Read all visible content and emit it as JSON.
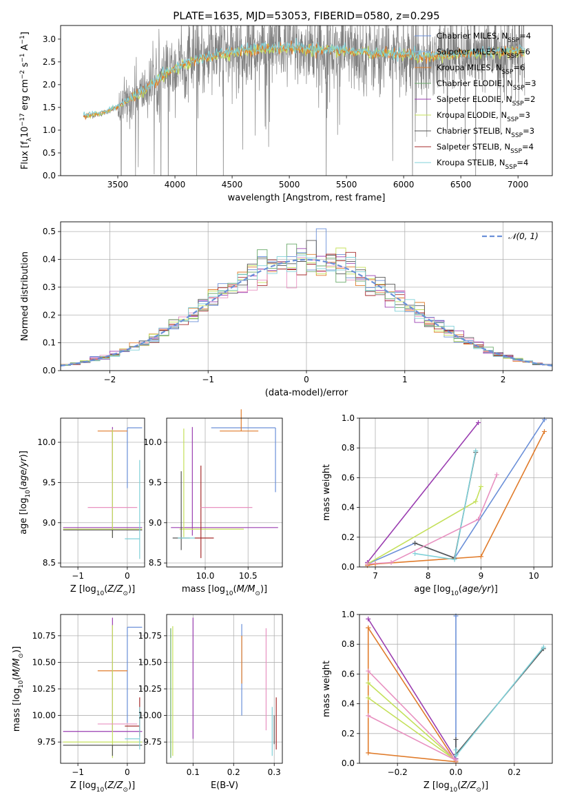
{
  "figure_title": "PLATE=1635, MJD=53053, FIBERID=0580, z=0.295",
  "colors": {
    "Chabrier MILES": "#6a8fd8",
    "Salpeter MILES": "#8ab4e8",
    "Kroupa MILES": "#e07b2a",
    "Chabrier ELODIE": "#6aaa6a",
    "Salpeter ELODIE": "#9a3db0",
    "Kroupa ELODIE": "#c4e05a",
    "Chabrier STELIB": "#555555",
    "Salpeter STELIB": "#a52a2a",
    "Kroupa STELIB": "#7fd0d8",
    "pink": "#e890c0",
    "gray_data": "#808080"
  },
  "chart_data": [
    {
      "id": "spectrum",
      "type": "line",
      "xlabel": "wavelength [Angstrom, rest frame]",
      "ylabel": "Flux [f_λ10^-17 erg cm^-2 s^-1 A^-1]",
      "xlim": [
        3000,
        7300
      ],
      "ylim": [
        0,
        3.3
      ],
      "xticks": [
        3500,
        4000,
        4500,
        5000,
        5500,
        6000,
        6500,
        7000
      ],
      "yticks": [
        0.0,
        0.5,
        1.0,
        1.5,
        2.0,
        2.5,
        3.0
      ],
      "legend_position": "top-right",
      "legend": [
        "Chabrier MILES, N_SSP=4",
        "Salpeter MILES, N_SSP=6",
        "Kroupa MILES, N_SSP=6",
        "Chabrier ELODIE, N_SSP=3",
        "Salpeter ELODIE, N_SSP=2",
        "Kroupa ELODIE, N_SSP=3",
        "Chabrier STELIB, N_SSP=3",
        "Salpeter STELIB, N_SSP=4",
        "Kroupa STELIB, N_SSP=4"
      ],
      "data_x_range": [
        3200,
        7060
      ],
      "continuum": {
        "x": [
          3200,
          3350,
          3500,
          3700,
          3900,
          4100,
          4300,
          4500,
          4800,
          5000,
          5300,
          5600,
          5900,
          6200,
          6500,
          6800,
          7050
        ],
        "y": [
          1.3,
          1.35,
          1.5,
          1.8,
          2.2,
          2.45,
          2.6,
          2.7,
          2.78,
          2.78,
          2.75,
          2.7,
          2.65,
          2.6,
          2.65,
          2.7,
          2.72
        ]
      }
    },
    {
      "id": "residuals",
      "type": "histogram",
      "xlabel": "(data-model)/error",
      "ylabel": "Normed distribution",
      "xlim": [
        -2.5,
        2.5
      ],
      "ylim": [
        0,
        0.535
      ],
      "xticks": [
        -2,
        -1,
        0,
        1,
        2
      ],
      "yticks": [
        0.0,
        0.1,
        0.2,
        0.3,
        0.4,
        0.5
      ],
      "grid": true,
      "legend": "𝒩(0, 1)",
      "legend_position": "top-right",
      "bin_width": 0.1,
      "peak_value": 0.51
    },
    {
      "id": "age_vs_Z",
      "type": "errorbar",
      "xlabel": "Z [log10(Z/Z⊙)]",
      "ylabel": "age  [log10(age/yr)]",
      "xlim": [
        -1.35,
        0.35
      ],
      "ylim": [
        8.45,
        10.3
      ],
      "xticks": [
        -1,
        0
      ],
      "yticks": [
        8.5,
        9.0,
        9.5,
        10.0
      ],
      "grid": true,
      "points": [
        {
          "model": "Chabrier MILES",
          "x": 0.0,
          "xerr": [
            0.0,
            0.3
          ],
          "y": 10.18,
          "yerr": [
            0.75,
            0.0
          ]
        },
        {
          "model": "Kroupa MILES",
          "x": -0.3,
          "xerr": [
            0.3,
            0.3
          ],
          "y": 10.14,
          "yerr": [
            0.5,
            0.0
          ]
        },
        {
          "model": "Salpeter ELODIE",
          "x": -0.3,
          "xerr": [
            1.0,
            0.6
          ],
          "y": 8.94,
          "yerr": [
            0.05,
            1.25
          ]
        },
        {
          "model": "Kroupa ELODIE",
          "x": -0.3,
          "xerr": [
            1.0,
            0.6
          ],
          "y": 8.92,
          "yerr": [
            0.1,
            1.24
          ]
        },
        {
          "model": "Chabrier STELIB",
          "x": -0.3,
          "xerr": [
            1.0,
            0.6
          ],
          "y": 8.91,
          "yerr": [
            0.1,
            0.0
          ]
        },
        {
          "model": "pink",
          "x": -0.3,
          "xerr": [
            0.5,
            0.5
          ],
          "y": 9.19,
          "yerr": [
            0.0,
            0.0
          ]
        },
        {
          "model": "Kroupa STELIB",
          "x": 0.25,
          "xerr": [
            0.3,
            0.0
          ],
          "y": 8.8,
          "yerr": [
            0.25,
            0.98
          ]
        }
      ]
    },
    {
      "id": "age_vs_mass",
      "type": "errorbar",
      "xlabel": "mass [log10(M/M⊙)]",
      "ylabel": "",
      "xlim": [
        9.55,
        10.9
      ],
      "ylim": [
        8.45,
        10.3
      ],
      "xticks": [
        10.0,
        10.5
      ],
      "yticks": [
        8.5,
        9.0,
        9.5,
        10.0
      ],
      "grid": true,
      "points": [
        {
          "model": "Chabrier MILES",
          "x": 10.82,
          "xerr": [
            0.75,
            0.0
          ],
          "y": 10.18,
          "yerr": [
            0.8,
            0.0
          ]
        },
        {
          "model": "Kroupa MILES",
          "x": 10.42,
          "xerr": [
            0.25,
            0.2
          ],
          "y": 10.14,
          "yerr": [
            0.0,
            0.27
          ]
        },
        {
          "model": "Salpeter ELODIE",
          "x": 9.85,
          "xerr": [
            0.25,
            1.0
          ],
          "y": 8.94,
          "yerr": [
            0.1,
            1.25
          ]
        },
        {
          "model": "Kroupa ELODIE",
          "x": 9.75,
          "xerr": [
            0.05,
            0.7
          ],
          "y": 8.92,
          "yerr": [
            0.1,
            1.25
          ]
        },
        {
          "model": "Chabrier STELIB",
          "x": 9.72,
          "xerr": [
            0.1,
            0.1
          ],
          "y": 8.81,
          "yerr": [
            0.15,
            0.83
          ]
        },
        {
          "model": "Salpeter STELIB",
          "x": 9.95,
          "xerr": [
            0.08,
            0.15
          ],
          "y": 8.81,
          "yerr": [
            0.25,
            0.9
          ]
        },
        {
          "model": "pink",
          "x": 10.25,
          "xerr": [
            0.3,
            0.3
          ],
          "y": 9.19,
          "yerr": [
            0.0,
            0.0
          ]
        },
        {
          "model": "Kroupa STELIB",
          "x": 9.78,
          "xerr": [
            0.1,
            0.1
          ],
          "y": 8.81,
          "yerr": [
            0.0,
            0.0
          ]
        }
      ]
    },
    {
      "id": "mass_weight_vs_age",
      "type": "line",
      "xlabel": "age  [log10(age/yr)]",
      "ylabel": "mass weight",
      "xlim": [
        6.7,
        10.35
      ],
      "ylim": [
        0,
        1.0
      ],
      "xticks": [
        7,
        8,
        9,
        10
      ],
      "yticks": [
        0.0,
        0.2,
        0.4,
        0.6,
        0.8,
        1.0
      ],
      "grid": true,
      "series": [
        {
          "name": "Chabrier MILES",
          "x": [
            6.85,
            7.75,
            8.5,
            10.2
          ],
          "y": [
            0.02,
            0.16,
            0.06,
            0.99
          ]
        },
        {
          "name": "Kroupa MILES",
          "x": [
            6.85,
            7.0,
            9.0,
            10.2
          ],
          "y": [
            0.01,
            0.02,
            0.07,
            0.91
          ]
        },
        {
          "name": "Salpeter ELODIE",
          "x": [
            6.85,
            8.95
          ],
          "y": [
            0.03,
            0.97
          ]
        },
        {
          "name": "Kroupa ELODIE",
          "x": [
            6.85,
            8.9,
            9.0
          ],
          "y": [
            0.02,
            0.44,
            0.54
          ]
        },
        {
          "name": "Chabrier STELIB",
          "x": [
            7.75,
            8.5,
            8.9
          ],
          "y": [
            0.16,
            0.06,
            0.77
          ]
        },
        {
          "name": "Kroupa STELIB",
          "x": [
            7.75,
            8.5,
            8.9
          ],
          "y": [
            0.09,
            0.05,
            0.78
          ]
        },
        {
          "name": "pink",
          "x": [
            6.85,
            7.3,
            8.95,
            9.3
          ],
          "y": [
            0.02,
            0.03,
            0.32,
            0.62
          ]
        }
      ]
    },
    {
      "id": "mass_vs_Z",
      "type": "errorbar",
      "xlabel": "Z [log10(Z/Z⊙)]",
      "ylabel": "mass [log10(M/M⊙)]",
      "xlim": [
        -1.35,
        0.35
      ],
      "ylim": [
        9.55,
        10.95
      ],
      "xticks": [
        -1,
        0
      ],
      "yticks": [
        9.75,
        10.0,
        10.25,
        10.5,
        10.75
      ],
      "grid": true,
      "points": [
        {
          "model": "Chabrier MILES",
          "x": 0.0,
          "xerr": [
            0.0,
            0.3
          ],
          "y": 10.83,
          "yerr": [
            0.9,
            0.0
          ]
        },
        {
          "model": "Kroupa MILES",
          "x": -0.3,
          "xerr": [
            0.3,
            0.3
          ],
          "y": 10.42,
          "yerr": [
            0.0,
            0.0
          ]
        },
        {
          "model": "Salpeter ELODIE",
          "x": -0.3,
          "xerr": [
            1.0,
            0.6
          ],
          "y": 9.85,
          "yerr": [
            0.0,
            1.07
          ]
        },
        {
          "model": "Kroupa ELODIE",
          "x": -0.3,
          "xerr": [
            1.0,
            0.6
          ],
          "y": 9.75,
          "yerr": [
            0.15,
            1.1
          ]
        },
        {
          "model": "Chabrier STELIB",
          "x": -0.3,
          "xerr": [
            1.0,
            0.6
          ],
          "y": 9.72,
          "yerr": [
            0.1,
            0.0
          ]
        },
        {
          "model": "Salpeter STELIB",
          "x": 0.25,
          "xerr": [
            0.3,
            0.0
          ],
          "y": 9.9,
          "yerr": [
            0.1,
            0.27
          ]
        },
        {
          "model": "pink",
          "x": -0.3,
          "xerr": [
            0.3,
            0.5
          ],
          "y": 9.92,
          "yerr": [
            0.0,
            0.0
          ]
        },
        {
          "model": "Kroupa STELIB",
          "x": 0.25,
          "xerr": [
            0.3,
            0.0
          ],
          "y": 9.78,
          "yerr": [
            0.1,
            0.3
          ]
        }
      ]
    },
    {
      "id": "mass_vs_EBV",
      "type": "errorbar",
      "xlabel": "E(B-V)",
      "ylabel": "",
      "xlim": [
        0.035,
        0.32
      ],
      "ylim": [
        9.55,
        10.95
      ],
      "xticks": [
        0.1,
        0.2,
        0.3
      ],
      "yticks": [
        9.75,
        10.0,
        10.25,
        10.5,
        10.75
      ],
      "grid": true,
      "points": [
        {
          "model": "Chabrier MILES",
          "x": 0.22,
          "yerr": [
            10.0,
            10.86
          ]
        },
        {
          "model": "Kroupa MILES",
          "x": 0.22,
          "yerr": [
            10.3,
            10.75
          ]
        },
        {
          "model": "Salpeter ELODIE",
          "x": 0.1,
          "yerr": [
            9.78,
            10.92
          ]
        },
        {
          "model": "Kroupa ELODIE",
          "x": 0.05,
          "yerr": [
            9.62,
            10.84
          ]
        },
        {
          "model": "Chabrier ELODIE",
          "x": 0.045,
          "yerr": [
            9.6,
            10.82
          ]
        },
        {
          "model": "Chabrier STELIB",
          "x": 0.3,
          "yerr": [
            9.73,
            10.0
          ]
        },
        {
          "model": "Salpeter STELIB",
          "x": 0.305,
          "yerr": [
            9.68,
            10.17
          ]
        },
        {
          "model": "pink",
          "x": 0.28,
          "yerr": [
            9.86,
            10.82
          ]
        },
        {
          "model": "Kroupa STELIB",
          "x": 0.295,
          "yerr": [
            9.62,
            10.08
          ]
        }
      ]
    },
    {
      "id": "mass_weight_vs_Z",
      "type": "line",
      "xlabel": "Z [log10(Z/Z⊙)]",
      "ylabel": "mass weight",
      "xlim": [
        -0.33,
        0.33
      ],
      "ylim": [
        0,
        1.0
      ],
      "xticks": [
        -0.2,
        0.0,
        0.2
      ],
      "yticks": [
        0.0,
        0.2,
        0.4,
        0.6,
        0.8,
        1.0
      ],
      "grid": true,
      "series": [
        {
          "name": "Chabrier MILES",
          "x": [
            0.0,
            0.0
          ],
          "y": [
            0.01,
            0.99
          ]
        },
        {
          "name": "Kroupa MILES",
          "x": [
            -0.3,
            0.0,
            -0.3,
            -0.3
          ],
          "y": [
            0.91,
            0.01,
            0.07,
            0.91
          ]
        },
        {
          "name": "Salpeter ELODIE",
          "x": [
            -0.3,
            0.0
          ],
          "y": [
            0.97,
            0.03
          ]
        },
        {
          "name": "Kroupa ELODIE",
          "x": [
            -0.3,
            0.0,
            -0.3
          ],
          "y": [
            0.54,
            0.02,
            0.44
          ]
        },
        {
          "name": "Chabrier STELIB",
          "x": [
            0.0,
            0.0,
            0.3
          ],
          "y": [
            0.16,
            0.06,
            0.77
          ]
        },
        {
          "name": "Kroupa STELIB",
          "x": [
            0.0,
            0.0,
            0.3
          ],
          "y": [
            0.09,
            0.05,
            0.78
          ]
        },
        {
          "name": "pink",
          "x": [
            -0.3,
            0.0,
            -0.3
          ],
          "y": [
            0.62,
            0.02,
            0.32
          ]
        }
      ]
    }
  ]
}
